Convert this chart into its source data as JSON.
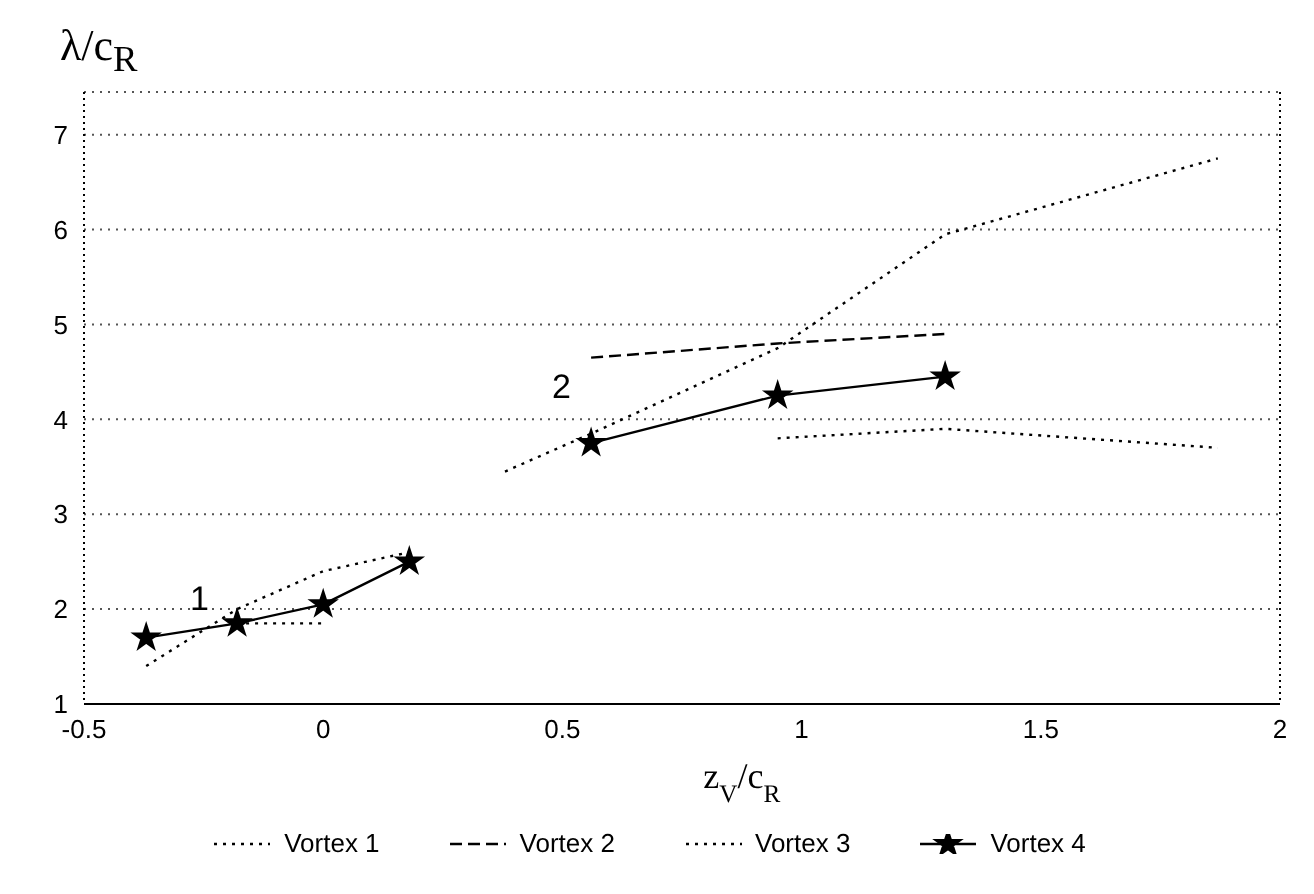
{
  "chart_data": {
    "type": "line",
    "ylabel": "λ/c$_{R}$",
    "xlabel": "z$_{V}$/c$_{R}$",
    "xlim": [
      -0.5,
      2
    ],
    "xticks": [
      -0.5,
      0,
      0.5,
      1,
      1.5,
      2
    ],
    "ylim": [
      1,
      7.45
    ],
    "yticks": [
      1,
      2,
      3,
      4,
      5,
      6,
      7
    ],
    "grid": "y",
    "legend": "bottom",
    "annotations": [
      "1",
      "2"
    ],
    "series": [
      {
        "name": "Vortex 1",
        "color": "#000000",
        "line_style": "dotted",
        "marker": "none",
        "x": [
          -0.37,
          -0.18,
          0,
          0.18,
          null,
          0.38,
          0.56,
          0.95,
          1.3,
          1.87
        ],
        "values": [
          1.4,
          2.0,
          2.4,
          2.6,
          null,
          3.45,
          3.85,
          4.75,
          5.95,
          6.75
        ]
      },
      {
        "name": "Vortex 2",
        "color": "#000000",
        "line_style": "dashed",
        "marker": "none",
        "x": [
          0.56,
          0.95,
          1.3
        ],
        "values": [
          4.65,
          4.8,
          4.9
        ]
      },
      {
        "name": "Vortex 3",
        "color": "#000000",
        "line_style": "dotted",
        "marker": "none",
        "x": [
          -0.18,
          0,
          null,
          0.95,
          1.3,
          1.87
        ],
        "values": [
          1.85,
          1.85,
          null,
          3.8,
          3.9,
          3.7
        ]
      },
      {
        "name": "Vortex 4",
        "color": "#000000",
        "line_style": "solid",
        "marker": "star",
        "x": [
          -0.37,
          -0.18,
          0,
          0.18,
          null,
          0.56,
          0.95,
          1.3
        ],
        "values": [
          1.7,
          1.85,
          2.05,
          2.5,
          null,
          3.75,
          4.25,
          4.45
        ]
      }
    ]
  }
}
